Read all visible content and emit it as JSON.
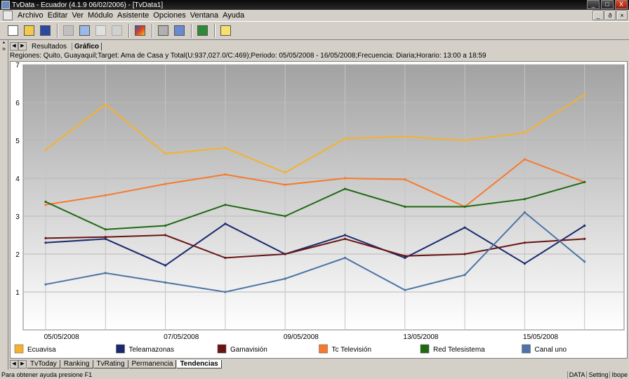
{
  "window": {
    "title": "TvData - Ecuador (4.1.9 06/02/2006) - [TvData1]",
    "controls": {
      "minimize": "_",
      "maximize": "□",
      "close": "X"
    }
  },
  "menu": {
    "items": [
      "Archivo",
      "Editar",
      "Ver",
      "Módulo",
      "Asistente",
      "Opciones",
      "Ventana",
      "Ayuda"
    ],
    "mdi_controls": {
      "minimize": "_",
      "restore": "ð",
      "close": "×"
    }
  },
  "toolbar": {
    "buttons": [
      "new-icon",
      "open-icon",
      "save-icon",
      "cut-icon",
      "copy-icon",
      "paste-icon",
      "find-icon",
      "wizard-icon",
      "print-icon",
      "print-preview-icon",
      "refresh-icon",
      "help-icon"
    ]
  },
  "left_strip": {
    "marks": [
      "•",
      "»"
    ]
  },
  "view_tabs": {
    "prev": "◀",
    "next": "▶",
    "results": "Resultados",
    "chart": "Gráfico"
  },
  "info_line": "Regiones: Quito, Guayaquil;Target: Ama de Casa y Total(U:937,027.0/C:469);Periodo: 05/05/2008 - 16/05/2008;Frecuencia: Diaria;Horario: 13:00 a 18:59",
  "chart_data": {
    "type": "line",
    "ylim": [
      0,
      7
    ],
    "y_ticks": [
      "1",
      "2",
      "3",
      "4",
      "5",
      "6",
      "7"
    ],
    "x_labels": [
      "05/05/2008",
      "07/05/2008",
      "09/05/2008",
      "13/05/2008",
      "15/05/2008"
    ],
    "x": [
      "05/05/2008",
      "06/05/2008",
      "07/05/2008",
      "08/05/2008",
      "09/05/2008",
      "12/05/2008",
      "13/05/2008",
      "14/05/2008",
      "15/05/2008",
      "16/05/2008"
    ],
    "grid": true,
    "legend_position": "bottom",
    "series": [
      {
        "name": "Ecuavisa",
        "color": "#f5b12e",
        "values": [
          4.75,
          5.95,
          4.65,
          4.8,
          4.15,
          5.05,
          5.1,
          5.0,
          5.2,
          6.2
        ]
      },
      {
        "name": "Teleamazonas",
        "color": "#1b2a6e",
        "values": [
          2.3,
          2.4,
          1.7,
          2.8,
          2.0,
          2.5,
          1.9,
          2.7,
          1.75,
          2.75
        ]
      },
      {
        "name": "Gamavisión",
        "color": "#6a1414",
        "values": [
          2.42,
          2.45,
          2.5,
          1.9,
          2.0,
          2.4,
          1.95,
          2.0,
          2.3,
          2.4
        ]
      },
      {
        "name": "Tc Televisión",
        "color": "#f57a2e",
        "values": [
          3.3,
          3.55,
          3.85,
          4.1,
          3.83,
          4.0,
          3.97,
          3.25,
          4.5,
          3.9
        ]
      },
      {
        "name": "Red Telesistema",
        "color": "#1f6a12",
        "values": [
          3.38,
          2.65,
          2.75,
          3.3,
          3.0,
          3.72,
          3.25,
          3.25,
          3.45,
          3.9
        ]
      },
      {
        "name": "Canal uno",
        "color": "#4d74a4",
        "values": [
          1.2,
          1.5,
          1.25,
          1.0,
          1.35,
          1.9,
          1.05,
          1.45,
          3.1,
          1.8
        ]
      }
    ]
  },
  "bottom_tabs": {
    "prev": "◀",
    "next": "▶",
    "tabs": [
      "TvToday",
      "Ranking",
      "TvRating",
      "Permanencia",
      "Tendencias"
    ],
    "active": "Tendencias"
  },
  "status": {
    "help": "Para obtener ayuda presione F1",
    "panels": [
      "DATA",
      "Setting",
      "Ibope"
    ]
  }
}
